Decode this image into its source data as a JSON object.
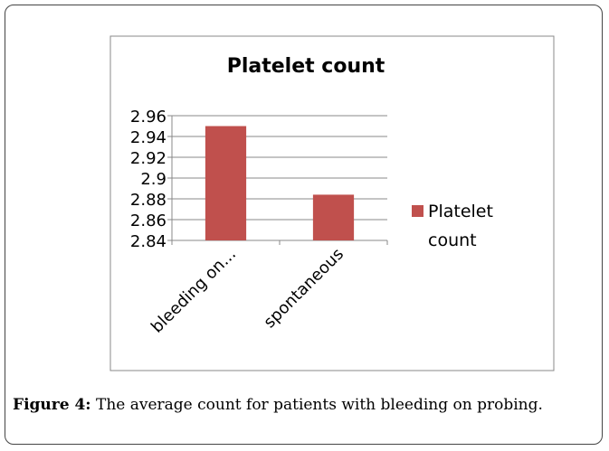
{
  "chart_data": {
    "type": "bar",
    "title": "Platelet count",
    "categories": [
      "bleeding on...",
      "spontaneous"
    ],
    "series": [
      {
        "name": "Platelet count",
        "color": "#c0504d",
        "values": [
          2.95,
          2.884
        ]
      }
    ],
    "ylim": [
      2.84,
      2.96
    ],
    "yticks": [
      {
        "value": 2.84,
        "label": "2.84"
      },
      {
        "value": 2.86,
        "label": "2.86"
      },
      {
        "value": 2.88,
        "label": "2.88"
      },
      {
        "value": 2.9,
        "label": "2.9"
      },
      {
        "value": 2.92,
        "label": "2.92"
      },
      {
        "value": 2.94,
        "label": "2.94"
      },
      {
        "value": 2.96,
        "label": "2.96"
      }
    ],
    "grid": true,
    "legend": "right"
  },
  "caption": {
    "label": "Figure 4:",
    "text": "The average count for patients with bleeding on probing."
  }
}
